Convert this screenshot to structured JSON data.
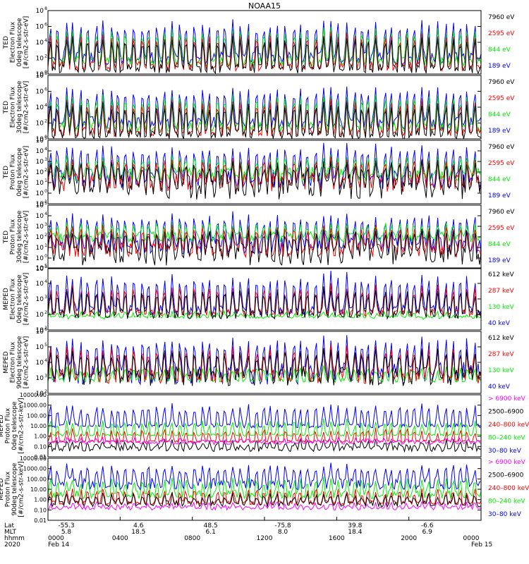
{
  "title": "NOAA15",
  "colors": {
    "black": "#000000",
    "red": "#ff0000",
    "green": "#00ee00",
    "blue": "#0000ff",
    "magenta": "#ff00ff"
  },
  "chart_data": [
    {
      "type": "line",
      "panel": 1,
      "scale": "log",
      "ylabel": [
        "TED",
        "Electron Flux",
        "0deg telescope",
        "[#/cm2-s-str-eV]"
      ],
      "yticks": [
        "10",
        "10",
        "10",
        "10",
        "10"
      ],
      "yexp": [
        "0",
        "2",
        "4",
        "6",
        "8"
      ],
      "ylim_exp": [
        0,
        8
      ],
      "series": [
        {
          "name": "7960 eV",
          "color": "black",
          "base": 0.7,
          "spread": 0.6,
          "peak": 4.8
        },
        {
          "name": "2595 eV",
          "color": "red",
          "base": 1.0,
          "spread": 0.6,
          "peak": 5.2
        },
        {
          "name": "844 eV",
          "color": "green",
          "base": 1.6,
          "spread": 0.6,
          "peak": 5.8
        },
        {
          "name": "189 eV",
          "color": "blue",
          "base": 2.0,
          "spread": 0.8,
          "peak": 6.8
        }
      ]
    },
    {
      "type": "line",
      "panel": 2,
      "scale": "log",
      "ylabel": [
        "TED",
        "Electron Flux",
        "30deg telescope",
        "[#/cm2-s-str-eV]"
      ],
      "yticks": [
        "10",
        "10",
        "10",
        "10",
        "10"
      ],
      "yexp": [
        "0",
        "2",
        "4",
        "6",
        "8"
      ],
      "ylim_exp": [
        0,
        8
      ],
      "series": [
        {
          "name": "7960 eV",
          "color": "black",
          "base": 0.6,
          "spread": 0.6,
          "peak": 4.6
        },
        {
          "name": "2595 eV",
          "color": "red",
          "base": 0.9,
          "spread": 0.6,
          "peak": 5.0
        },
        {
          "name": "844 eV",
          "color": "green",
          "base": 1.5,
          "spread": 0.6,
          "peak": 5.6
        },
        {
          "name": "189 eV",
          "color": "blue",
          "base": 2.0,
          "spread": 0.8,
          "peak": 6.6
        }
      ]
    },
    {
      "type": "line",
      "panel": 3,
      "scale": "log",
      "ylabel": [
        "TED",
        "Proton Flux",
        "0deg telescope",
        "[#/cm2-s-str-eV]"
      ],
      "yticks": [
        "10",
        "10",
        "10",
        "10",
        "10",
        "10",
        "10"
      ],
      "yexp": [
        "-1",
        "0",
        "1",
        "2",
        "3",
        "4",
        "5"
      ],
      "ylim_exp": [
        -1,
        5
      ],
      "series": [
        {
          "name": "7960 eV",
          "color": "black",
          "base": 0.6,
          "spread": 1.2,
          "peak": 3.0
        },
        {
          "name": "2595 eV",
          "color": "red",
          "base": 1.0,
          "spread": 0.9,
          "peak": 3.2
        },
        {
          "name": "844 eV",
          "color": "green",
          "base": 1.8,
          "spread": 0.7,
          "peak": 3.4
        },
        {
          "name": "189 eV",
          "color": "blue",
          "base": 1.3,
          "spread": 0.9,
          "peak": 4.6
        }
      ]
    },
    {
      "type": "line",
      "panel": 4,
      "scale": "log",
      "ylabel": [
        "TED",
        "Proton Flux",
        "30deg telescope",
        "[#/cm2-s-str-eV]"
      ],
      "yticks": [
        "10",
        "10",
        "10",
        "10",
        "10",
        "10",
        "10"
      ],
      "yexp": [
        "-1",
        "0",
        "1",
        "2",
        "3",
        "4",
        "5"
      ],
      "ylim_exp": [
        -1,
        5
      ],
      "series": [
        {
          "name": "7960 eV",
          "color": "black",
          "base": 0.3,
          "spread": 1.0,
          "peak": 2.6
        },
        {
          "name": "2595 eV",
          "color": "red",
          "base": 0.8,
          "spread": 0.7,
          "peak": 3.0
        },
        {
          "name": "844 eV",
          "color": "green",
          "base": 2.0,
          "spread": 0.5,
          "peak": 3.3
        },
        {
          "name": "189 eV",
          "color": "blue",
          "base": 1.2,
          "spread": 0.8,
          "peak": 4.2
        }
      ]
    },
    {
      "type": "line",
      "panel": 5,
      "scale": "log",
      "ylabel": [
        "MEPED",
        "Electron Flux",
        "0deg telescope",
        "[#/cm2-s-str-eV]"
      ],
      "yticks": [
        "10",
        "10",
        "10",
        "10",
        "10"
      ],
      "yexp": [
        "1",
        "2",
        "3",
        "4",
        "5"
      ],
      "ylim_exp": [
        1,
        6
      ],
      "series": [
        {
          "name": "612 keV",
          "color": "black",
          "base": 2.3,
          "spread": 0.4,
          "peak": 4.3
        },
        {
          "name": "287 keV",
          "color": "red",
          "base": 2.4,
          "spread": 0.3,
          "peak": 4.5
        },
        {
          "name": "130 keV",
          "color": "green",
          "base": 2.05,
          "spread": 0.1,
          "peak": 2.3
        },
        {
          "name": "40 keV",
          "color": "blue",
          "base": 2.6,
          "spread": 0.4,
          "peak": 5.5
        }
      ]
    },
    {
      "type": "line",
      "panel": 6,
      "scale": "log",
      "ylabel": [
        "MEPED",
        "Electron Flux",
        "90deg telescope",
        "[#/cm2-s-str-eV]"
      ],
      "yticks": [
        "10",
        "10",
        "10",
        "10",
        "10"
      ],
      "yexp": [
        "2",
        "3",
        "4",
        "5",
        "6"
      ],
      "ylim_exp": [
        1,
        6
      ],
      "series": [
        {
          "name": "612 keV",
          "color": "black",
          "base": 2.4,
          "spread": 0.8,
          "peak": 4.5
        },
        {
          "name": "287 keV",
          "color": "red",
          "base": 2.4,
          "spread": 0.6,
          "peak": 4.7
        },
        {
          "name": "130 keV",
          "color": "green",
          "base": 2.1,
          "spread": 0.2,
          "peak": 3.0
        },
        {
          "name": "40 keV",
          "color": "blue",
          "base": 2.6,
          "spread": 0.9,
          "peak": 5.5
        }
      ]
    },
    {
      "type": "line",
      "panel": 7,
      "scale": "log",
      "ylabel": [
        "MEPED",
        "Proton Flux",
        "0deg telescope",
        "[#/cm2-s-str-keV]"
      ],
      "yticks": [
        "0.01",
        "0.10",
        "1.00",
        "10.00",
        "100.00",
        "1000.00",
        "10000.00"
      ],
      "ylim_exp": [
        -2,
        4
      ],
      "series": [
        {
          "name": "> 6900 keV",
          "color": "magenta",
          "base": -0.6,
          "spread": 0.2,
          "peak": -0.4
        },
        {
          "name": "2500–6900",
          "color": "black",
          "base": -1.2,
          "spread": 0.3,
          "peak": -0.5
        },
        {
          "name": "240–800 keV",
          "color": "red",
          "base": -0.5,
          "spread": 0.1,
          "peak": 0.6
        },
        {
          "name": "80–240 keV",
          "color": "green",
          "base": 0.1,
          "spread": 0.1,
          "peak": 1.5
        },
        {
          "name": "30–80 keV",
          "color": "blue",
          "base": 1.0,
          "spread": 0.2,
          "peak": 3.0
        }
      ]
    },
    {
      "type": "line",
      "panel": 8,
      "scale": "log",
      "ylabel": [
        "MEPED",
        "Proton Flux",
        "90deg telescope",
        "[#/cm2-s-str-keV]"
      ],
      "yticks": [
        "0.01",
        "0.10",
        "1.00",
        "10.00",
        "100.00",
        "1000.00",
        "10000.00"
      ],
      "ylim_exp": [
        -2,
        4
      ],
      "series": [
        {
          "name": "> 6900 keV",
          "color": "magenta",
          "base": -0.8,
          "spread": 0.2,
          "peak": -0.4
        },
        {
          "name": "2500–6900",
          "color": "black",
          "base": -0.4,
          "spread": 0.3,
          "peak": 0.5
        },
        {
          "name": "240–800 keV",
          "color": "red",
          "base": -0.3,
          "spread": 0.2,
          "peak": 1.0
        },
        {
          "name": "80–240 keV",
          "color": "green",
          "base": 0.5,
          "spread": 0.4,
          "peak": 2.0
        },
        {
          "name": "30–80 keV",
          "color": "blue",
          "base": 1.5,
          "spread": 0.6,
          "peak": 3.3
        }
      ]
    }
  ],
  "x_axis": {
    "hours": [
      0,
      4,
      8,
      12,
      16,
      20,
      24
    ],
    "row_labels": [
      "Lat",
      "MLT",
      "hhmm",
      "2020"
    ],
    "lat": [
      "-55.3",
      "4.6",
      "48.5",
      "-75.8",
      "39.8",
      "-6.6"
    ],
    "mlt": [
      "5.8",
      "18.5",
      "6.1",
      "8.0",
      "18.4",
      "6.9"
    ],
    "hhmm": [
      "0000",
      "0400",
      "0800",
      "1200",
      "1600",
      "2000",
      "0000"
    ],
    "date_start": "Feb 14",
    "date_end": "Feb 15"
  }
}
